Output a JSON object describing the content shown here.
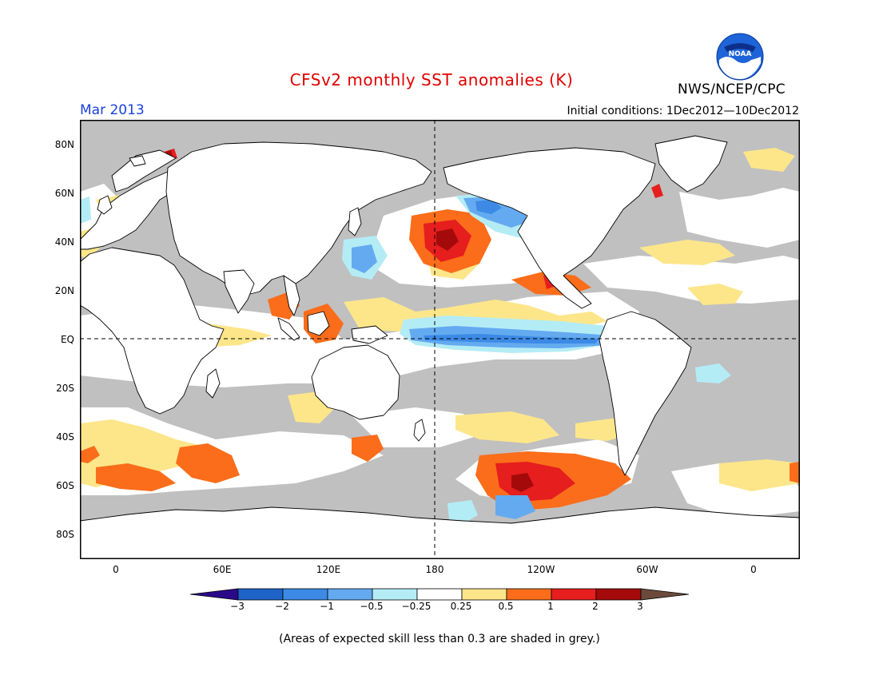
{
  "title": "CFSv2 monthly SST anomalies (K)",
  "month_label": "Mar 2013",
  "org_label": "NWS/NCEP/CPC",
  "logo_text": "NOAA",
  "initial_conditions": "Initial conditions: 1Dec2012—10Dec2012",
  "y_axis_labels": [
    "80N",
    "60N",
    "40N",
    "20N",
    "EQ",
    "20S",
    "40S",
    "60S",
    "80S"
  ],
  "x_axis_labels": [
    "0",
    "60E",
    "120E",
    "180",
    "120W",
    "60W",
    "0"
  ],
  "colorbar": {
    "tick_labels": [
      "−3",
      "−2",
      "−1",
      "−0.5",
      "−0.25",
      "0.25",
      "0.5",
      "1",
      "2",
      "3"
    ],
    "colors": [
      "#2a0a8a",
      "#1e63c8",
      "#3c8ae6",
      "#64aaf0",
      "#b4ecf6",
      "#ffffff",
      "#fde68a",
      "#fb6d1a",
      "#e61e1e",
      "#a50a0a",
      "#6b4a3c"
    ]
  },
  "colors": {
    "grey_mask": "#c0c0c0",
    "land": "#ffffff",
    "title_red": "#e00000",
    "month_blue": "#1a40e0"
  },
  "footnote": "(Areas of expected skill less than 0.3 are shaded in grey.)"
}
